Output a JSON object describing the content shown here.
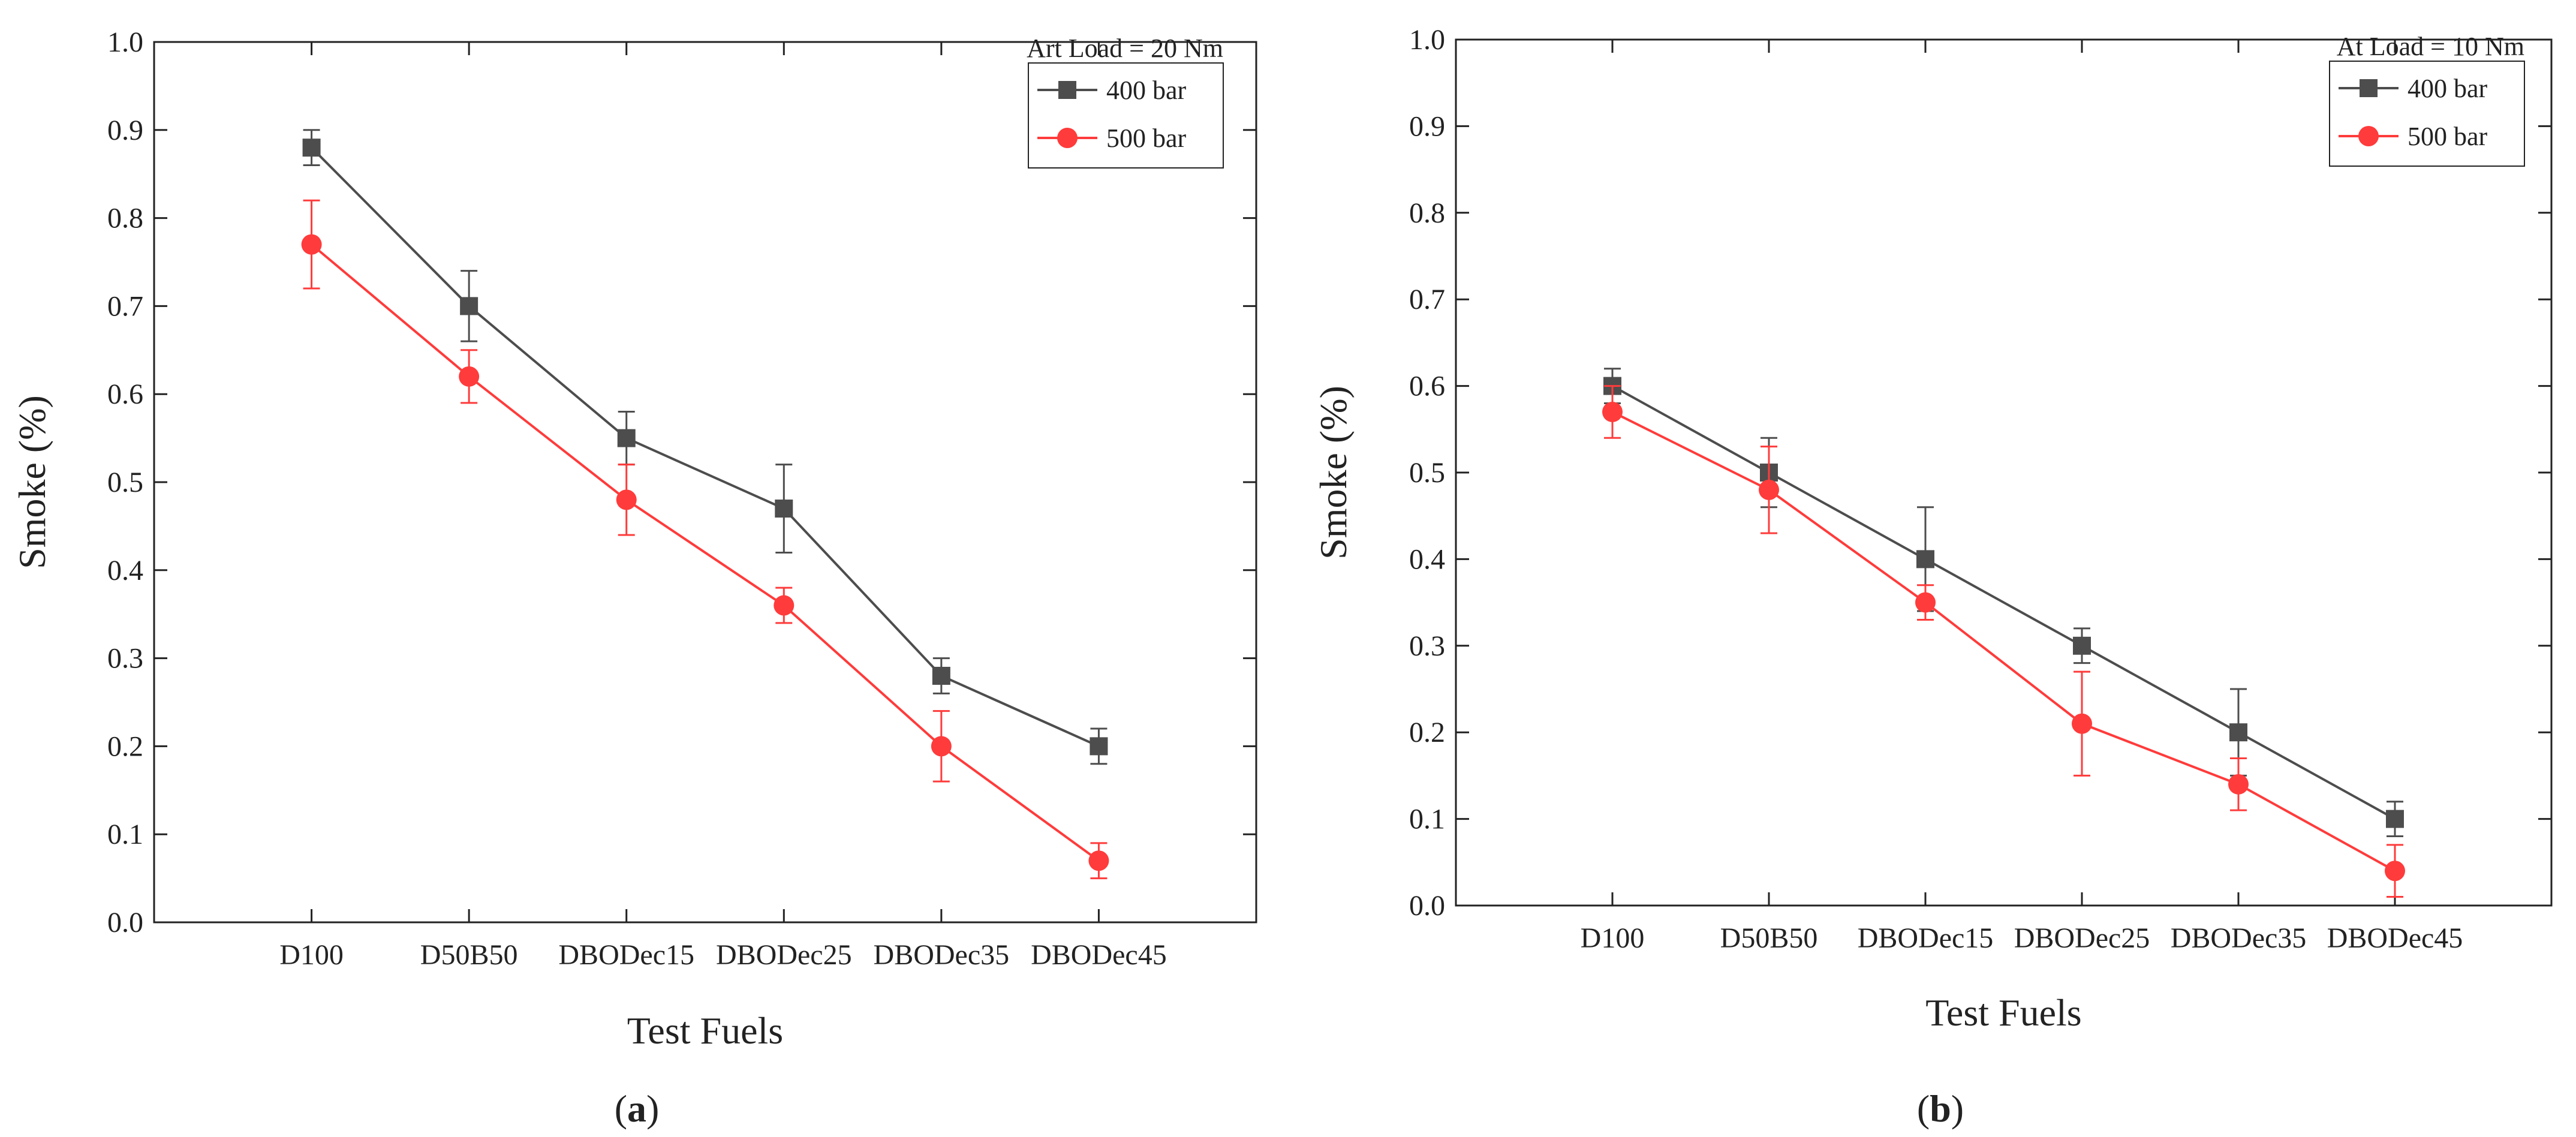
{
  "chart_data": [
    {
      "type": "line",
      "panel": "a",
      "categories": [
        "D100",
        "D50B50",
        "DBODec15",
        "DBODec25",
        "DBODec35",
        "DBODec45"
      ],
      "xlabel": "Test Fuels",
      "ylabel": "Smoke (%)",
      "ylim": [
        0,
        1.0
      ],
      "yticks": [
        0.0,
        0.1,
        0.2,
        0.3,
        0.4,
        0.5,
        0.6,
        0.7,
        0.8,
        0.9,
        1.0
      ],
      "legend_title": "Art Load = 20 Nm",
      "legend_position": "top-right",
      "series": [
        {
          "name": "400 bar",
          "color": "#4d4d4d",
          "marker": "square",
          "values": [
            0.88,
            0.7,
            0.55,
            0.47,
            0.28,
            0.2
          ],
          "errors": [
            0.02,
            0.04,
            0.03,
            0.05,
            0.02,
            0.02
          ]
        },
        {
          "name": "500 bar",
          "color": "#ff3b3b",
          "marker": "circle",
          "values": [
            0.77,
            0.62,
            0.48,
            0.36,
            0.2,
            0.07
          ],
          "errors": [
            0.05,
            0.03,
            0.04,
            0.02,
            0.04,
            0.02
          ]
        }
      ]
    },
    {
      "type": "line",
      "panel": "b",
      "categories": [
        "D100",
        "D50B50",
        "DBODec15",
        "DBODec25",
        "DBODec35",
        "DBODec45"
      ],
      "xlabel": "Test Fuels",
      "ylabel": "Smoke (%)",
      "ylim": [
        0,
        1.0
      ],
      "yticks": [
        0.0,
        0.1,
        0.2,
        0.3,
        0.4,
        0.5,
        0.6,
        0.7,
        0.8,
        0.9,
        1.0
      ],
      "legend_title": "At Load = 10 Nm",
      "legend_position": "top-right",
      "series": [
        {
          "name": "400 bar",
          "color": "#4d4d4d",
          "marker": "square",
          "values": [
            0.6,
            0.5,
            0.4,
            0.3,
            0.2,
            0.1
          ],
          "errors": [
            0.02,
            0.04,
            0.06,
            0.02,
            0.05,
            0.02
          ]
        },
        {
          "name": "500 bar",
          "color": "#ff3b3b",
          "marker": "circle",
          "values": [
            0.57,
            0.48,
            0.35,
            0.21,
            0.14,
            0.04
          ],
          "errors": [
            0.03,
            0.05,
            0.02,
            0.06,
            0.03,
            0.03
          ]
        }
      ]
    }
  ],
  "panel_labels": [
    "a",
    "b"
  ]
}
